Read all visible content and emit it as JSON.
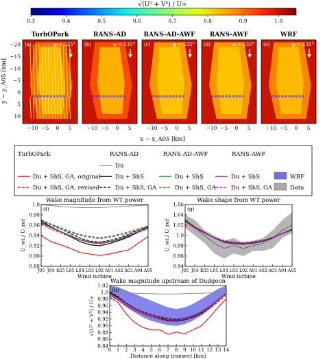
{
  "colorbar": {
    "label": "√(U² + V²) / U∞",
    "ticks": [
      "0.3",
      "0.4",
      "0.5",
      "0.6",
      "0.7",
      "0.8",
      "0.9",
      "1.0"
    ],
    "range": [
      0.3,
      1.05
    ]
  },
  "maps": {
    "ylabel": "y − y_A05 [km]",
    "xlabel": "x − x_A05 [km]",
    "xticks": [
      "−10",
      "−5",
      "0",
      "5"
    ],
    "yticks": [
      "−20",
      "−15",
      "−10",
      "−5",
      "0",
      "5",
      "10"
    ],
    "panels": [
      {
        "title": "TurbOPark",
        "tag": "(a)",
        "phi": "φ = 235°"
      },
      {
        "title": "RANS-AD",
        "tag": "(b)",
        "phi": "φ = 235°"
      },
      {
        "title": "RANS-AD-AWF",
        "tag": "(c)",
        "phi": "φ = 235°"
      },
      {
        "title": "RANS-AWF",
        "tag": "(d)",
        "phi": "φ = 235°"
      },
      {
        "title": "WRF",
        "tag": "(e)",
        "phi": "φ = 235°"
      }
    ]
  },
  "legend": {
    "col1_header": "TurbOPark",
    "col2_header": "RANS-AD",
    "col3_header": "RANS-AD-AWF",
    "col4_header": "RANS-AWF",
    "entries": {
      "du": "Du",
      "orig": "Du + ShS, GA, original",
      "rev": "Du + ShS, GA, revised",
      "ad_shs": "Du + ShS",
      "ad_shs_ga": "Du + ShS, GA",
      "adawf_shs": "Du + ShS",
      "adawf_shs_ga": "Du + ShS, GA",
      "awf_shs": "Du + ShS",
      "awf_shs_ga": "Du + ShS, GA",
      "wrf": "WRF",
      "data": "Data"
    }
  },
  "colors": {
    "turbopark": "#e41a1c",
    "rans_ad": "#000000",
    "rans_adawf": "#1a9a1a",
    "rans_awf": "#b31ab3",
    "wrf_band": "#6f6fe8",
    "data_band": "#a9a9a9",
    "du": "#8c8c8c"
  },
  "chart_data": [
    {
      "type": "line",
      "title": "Wake magnitude from WT power",
      "tag": "(f)",
      "ylabel": "U_wt / U_ref",
      "xlabel": "Wind turbine",
      "categories": [
        "J05",
        "J04",
        "K05",
        "L05",
        "L04",
        "L03",
        "L02",
        "A01",
        "A02",
        "A03",
        "A04",
        "A05"
      ],
      "ylim": [
        0.88,
        1.0
      ],
      "yticks": [
        "0.88",
        "0.90",
        "0.92",
        "0.94",
        "0.96",
        "0.98",
        "1.0"
      ],
      "series": [
        {
          "key": "du",
          "values": [
            1.0,
            0.998,
            0.996,
            0.995,
            0.994,
            0.994,
            0.994,
            0.995,
            0.996,
            0.997,
            0.998,
            0.999
          ]
        },
        {
          "key": "orig",
          "values": [
            0.94,
            0.928,
            0.922,
            0.915,
            0.907,
            0.904,
            0.901,
            0.904,
            0.908,
            0.912,
            0.925,
            0.938
          ]
        },
        {
          "key": "rev",
          "values": [
            0.962,
            0.952,
            0.945,
            0.938,
            0.932,
            0.928,
            0.926,
            0.928,
            0.932,
            0.938,
            0.946,
            0.953
          ]
        },
        {
          "key": "ad_shs",
          "values": [
            0.967,
            0.957,
            0.948,
            0.938,
            0.928,
            0.922,
            0.92,
            0.924,
            0.93,
            0.937,
            0.947,
            0.957
          ]
        },
        {
          "key": "ad_shs_ga",
          "values": [
            0.97,
            0.962,
            0.953,
            0.944,
            0.935,
            0.929,
            0.927,
            0.93,
            0.935,
            0.942,
            0.95,
            0.958
          ]
        },
        {
          "key": "adawf_shs",
          "values": [
            0.965,
            0.956,
            0.948,
            0.94,
            0.932,
            0.927,
            0.925,
            0.928,
            0.933,
            0.94,
            0.948,
            0.955
          ]
        },
        {
          "key": "adawf_shs_ga",
          "values": [
            0.968,
            0.962,
            0.955,
            0.948,
            0.942,
            0.938,
            0.936,
            0.938,
            0.942,
            0.947,
            0.953,
            0.958
          ]
        },
        {
          "key": "awf_shs",
          "values": [
            0.964,
            0.955,
            0.947,
            0.939,
            0.931,
            0.926,
            0.924,
            0.927,
            0.932,
            0.939,
            0.947,
            0.954
          ]
        },
        {
          "key": "awf_shs_ga",
          "values": [
            0.967,
            0.96,
            0.953,
            0.946,
            0.94,
            0.936,
            0.934,
            0.936,
            0.94,
            0.945,
            0.951,
            0.957
          ]
        }
      ]
    },
    {
      "type": "line",
      "title": "Wake shape from WT power",
      "tag": "(g)",
      "ylabel": "U_wt / U_ref",
      "xlabel": "Wind turbine",
      "categories": [
        "J05",
        "J04",
        "K05",
        "L05",
        "L04",
        "L03",
        "L02",
        "A01",
        "A02",
        "A03",
        "A04",
        "A05"
      ],
      "ylim": [
        0.94,
        1.06
      ],
      "yticks": [
        "0.94",
        "0.96",
        "0.98",
        "1.0",
        "1.02",
        "1.04",
        "1.06"
      ],
      "data_band": {
        "lower": [
          1.015,
          1.0,
          0.985,
          0.965,
          0.955,
          0.965,
          0.96,
          0.97,
          0.97,
          0.975,
          0.995,
          1.005
        ],
        "upper": [
          1.04,
          1.03,
          1.01,
          1.0,
          0.99,
          0.995,
          0.985,
          0.99,
          0.995,
          1.01,
          1.03,
          1.045
        ],
        "mean": [
          1.03,
          1.015,
          1.0,
          0.985,
          0.975,
          0.98,
          0.975,
          0.98,
          0.985,
          0.995,
          1.01,
          1.02
        ]
      },
      "series": [
        {
          "key": "orig",
          "values": [
            1.028,
            1.014,
            1.005,
            0.995,
            0.988,
            0.986,
            0.985,
            0.986,
            0.99,
            0.996,
            1.004,
            1.012
          ]
        },
        {
          "key": "rev",
          "values": [
            1.028,
            1.014,
            1.005,
            0.996,
            0.989,
            0.987,
            0.986,
            0.987,
            0.99,
            0.996,
            1.004,
            1.011
          ]
        },
        {
          "key": "ad_shs",
          "values": [
            1.03,
            1.016,
            1.006,
            0.995,
            0.987,
            0.984,
            0.983,
            0.985,
            0.989,
            0.995,
            1.004,
            1.012
          ]
        },
        {
          "key": "ad_shs_ga",
          "values": [
            1.029,
            1.015,
            1.005,
            0.995,
            0.988,
            0.985,
            0.984,
            0.986,
            0.99,
            0.996,
            1.004,
            1.011
          ]
        },
        {
          "key": "adawf_shs",
          "values": [
            1.029,
            1.015,
            1.005,
            0.995,
            0.988,
            0.985,
            0.984,
            0.986,
            0.99,
            0.996,
            1.004,
            1.011
          ]
        },
        {
          "key": "adawf_shs_ga",
          "values": [
            1.027,
            1.014,
            1.005,
            0.996,
            0.99,
            0.987,
            0.986,
            0.988,
            0.991,
            0.996,
            1.003,
            1.01
          ]
        },
        {
          "key": "awf_shs",
          "values": [
            1.029,
            1.015,
            1.005,
            0.995,
            0.988,
            0.985,
            0.984,
            0.986,
            0.99,
            0.996,
            1.004,
            1.011
          ]
        },
        {
          "key": "awf_shs_ga",
          "values": [
            1.027,
            1.014,
            1.005,
            0.996,
            0.99,
            0.987,
            0.986,
            0.988,
            0.991,
            0.996,
            1.003,
            1.01
          ]
        }
      ]
    },
    {
      "type": "line",
      "title": "Wake magnitude upstream of Dudgeon",
      "tag": "(h)",
      "ylabel": "√(U² + V²) / U∞",
      "xlabel": "Distance along transect [km]",
      "x": [
        0,
        1,
        2,
        3,
        4,
        5,
        6,
        7,
        8,
        9,
        10,
        11,
        12,
        13,
        14
      ],
      "xlim": [
        0,
        14
      ],
      "ylim": [
        0.84,
        1.02
      ],
      "yticks": [
        "0.84",
        "0.86",
        "0.88",
        "0.90",
        "0.92",
        "0.94",
        "0.96",
        "0.98",
        "1.0",
        "1.02"
      ],
      "xticks": [
        "0",
        "1",
        "2",
        "3",
        "4",
        "5",
        "6",
        "7",
        "8",
        "9",
        "10",
        "11",
        "12",
        "13",
        "14"
      ],
      "wrf_band": {
        "lower": [
          0.99,
          0.975,
          0.955,
          0.94,
          0.925,
          0.915,
          0.908,
          0.902,
          0.9,
          0.905,
          0.915,
          0.93,
          0.95,
          0.975,
          1.0
        ],
        "upper": [
          1.02,
          1.015,
          1.005,
          0.995,
          0.985,
          0.975,
          0.965,
          0.955,
          0.95,
          0.955,
          0.965,
          0.98,
          0.995,
          1.01,
          1.02
        ]
      },
      "series": [
        {
          "key": "du",
          "values": [
            1.0,
            0.999,
            0.998,
            0.997,
            0.996,
            0.996,
            0.995,
            0.995,
            0.995,
            0.996,
            0.997,
            0.997,
            0.998,
            0.999,
            1.0
          ]
        },
        {
          "key": "orig",
          "values": [
            0.985,
            0.97,
            0.935,
            0.91,
            0.895,
            0.888,
            0.888,
            0.875,
            0.882,
            0.876,
            0.888,
            0.9,
            0.925,
            0.955,
            0.98
          ]
        },
        {
          "key": "rev",
          "values": [
            0.99,
            0.978,
            0.96,
            0.945,
            0.935,
            0.926,
            0.92,
            0.913,
            0.915,
            0.918,
            0.925,
            0.935,
            0.952,
            0.97,
            0.99
          ]
        },
        {
          "key": "ad_shs",
          "values": [
            1.0,
            0.985,
            0.965,
            0.95,
            0.938,
            0.93,
            0.922,
            0.916,
            0.914,
            0.918,
            0.926,
            0.938,
            0.955,
            0.975,
            0.995
          ]
        },
        {
          "key": "ad_shs_ga",
          "values": [
            1.0,
            0.987,
            0.968,
            0.953,
            0.941,
            0.933,
            0.926,
            0.92,
            0.918,
            0.921,
            0.929,
            0.941,
            0.957,
            0.977,
            0.997
          ]
        },
        {
          "key": "adawf_shs",
          "values": [
            0.995,
            0.982,
            0.964,
            0.949,
            0.938,
            0.93,
            0.923,
            0.918,
            0.916,
            0.92,
            0.928,
            0.94,
            0.956,
            0.976,
            0.995
          ]
        },
        {
          "key": "adawf_shs_ga",
          "values": [
            0.995,
            0.984,
            0.967,
            0.953,
            0.942,
            0.934,
            0.928,
            0.923,
            0.921,
            0.924,
            0.931,
            0.942,
            0.958,
            0.977,
            0.996
          ]
        },
        {
          "key": "awf_shs",
          "values": [
            0.995,
            0.982,
            0.964,
            0.949,
            0.938,
            0.93,
            0.923,
            0.918,
            0.916,
            0.92,
            0.928,
            0.94,
            0.956,
            0.976,
            0.995
          ]
        },
        {
          "key": "awf_shs_ga",
          "values": [
            0.995,
            0.984,
            0.967,
            0.953,
            0.942,
            0.934,
            0.928,
            0.923,
            0.921,
            0.924,
            0.931,
            0.942,
            0.958,
            0.977,
            0.996
          ]
        }
      ]
    }
  ]
}
